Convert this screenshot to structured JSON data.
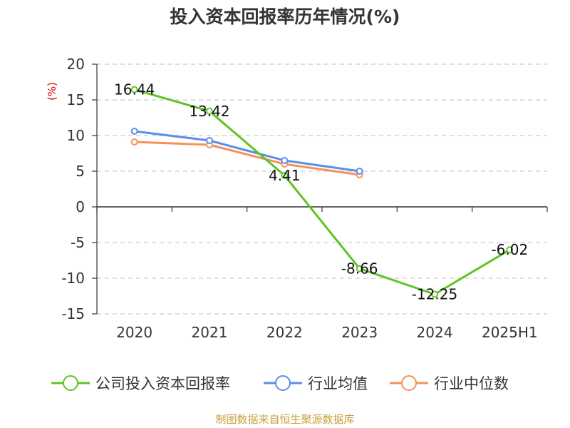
{
  "colors": {
    "company": "#5ec425",
    "industry_avg": "#5b8ee6",
    "industry_median": "#f5915b",
    "grid": "#cccccc",
    "axis": "#333333",
    "unit": "#dd0000",
    "source": "#c8a040"
  },
  "chart_data": {
    "type": "line",
    "title": "投入资本回报率历年情况(%)",
    "ylabel": "(%)",
    "categories": [
      "2020",
      "2021",
      "2022",
      "2023",
      "2024",
      "2025H1"
    ],
    "ylim": [
      -15,
      20
    ],
    "yticks": [
      20,
      15,
      10,
      5,
      0,
      -5,
      -10,
      -15
    ],
    "grid": true,
    "legend_position": "bottom",
    "series": [
      {
        "name": "公司投入资本回报率",
        "values": [
          16.44,
          13.42,
          4.41,
          -8.66,
          -12.25,
          -6.02
        ],
        "labels": [
          "16.44",
          "13.42",
          "4.41",
          "-8.66",
          "-12.25",
          "-6.02"
        ]
      },
      {
        "name": "行业均值",
        "values": [
          10.6,
          9.3,
          6.5,
          5.0,
          null,
          null
        ]
      },
      {
        "name": "行业中位数",
        "values": [
          9.1,
          8.7,
          6.0,
          4.5,
          null,
          null
        ]
      }
    ]
  },
  "source": "制图数据来自恒生聚源数据库"
}
